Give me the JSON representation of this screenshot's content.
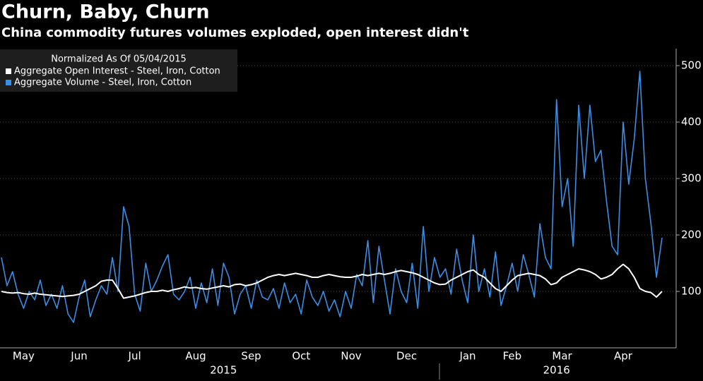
{
  "chart_data": {
    "type": "line",
    "title": "Churn, Baby, Churn",
    "subtitle": "China commodity futures volumes exploded, open interest didn't",
    "legend_title": "Normalized As Of 05/04/2015",
    "legend": "top-left",
    "grid": true,
    "ylim": [
      0,
      530
    ],
    "yticks": [
      100,
      200,
      300,
      400,
      500
    ],
    "categories": [
      null,
      null,
      null,
      null,
      "May",
      null,
      null,
      null,
      null,
      null,
      null,
      null,
      null,
      null,
      "Jun",
      null,
      null,
      null,
      null,
      null,
      null,
      null,
      null,
      null,
      "Jul",
      null,
      null,
      null,
      null,
      null,
      null,
      null,
      null,
      null,
      null,
      "Aug",
      null,
      null,
      null,
      null,
      null,
      null,
      null,
      null,
      null,
      "Sep",
      null,
      null,
      null,
      null,
      null,
      null,
      null,
      null,
      "Oct",
      null,
      null,
      null,
      null,
      null,
      null,
      null,
      null,
      "Nov",
      null,
      null,
      null,
      null,
      null,
      null,
      null,
      null,
      null,
      "Dec",
      null,
      null,
      null,
      null,
      null,
      null,
      null,
      null,
      null,
      null,
      "Jan",
      null,
      null,
      null,
      null,
      null,
      null,
      null,
      "Feb",
      null,
      null,
      null,
      null,
      null,
      null,
      null,
      null,
      "Mar",
      null,
      null,
      null,
      null,
      null,
      null,
      null,
      null,
      null,
      null,
      "Apr",
      null,
      null,
      null,
      null,
      null,
      null,
      null
    ],
    "year_labels": [
      null,
      null,
      null,
      null,
      null,
      null,
      null,
      null,
      null,
      null,
      null,
      null,
      null,
      null,
      null,
      null,
      null,
      null,
      null,
      null,
      null,
      null,
      null,
      null,
      null,
      null,
      null,
      null,
      null,
      null,
      null,
      null,
      null,
      null,
      null,
      null,
      null,
      null,
      null,
      null,
      "2015",
      null,
      null,
      null,
      null,
      null,
      null,
      null,
      null,
      null,
      null,
      null,
      null,
      null,
      null,
      null,
      null,
      null,
      null,
      null,
      null,
      null,
      null,
      null,
      null,
      null,
      null,
      null,
      null,
      null,
      null,
      null,
      null,
      null,
      null,
      null,
      null,
      null,
      null,
      null,
      null,
      null,
      null,
      null,
      null,
      null,
      null,
      null,
      null,
      null,
      null,
      null,
      null,
      null,
      null,
      null,
      null,
      null,
      null,
      null,
      "2016",
      null,
      null,
      null,
      null,
      null,
      null,
      null,
      null,
      null,
      null,
      null,
      null,
      null,
      null,
      null,
      null,
      null,
      null,
      null
    ],
    "series": [
      {
        "name": "Aggregate Open Interest - Steel, Iron, Cotton",
        "color": "#ffffff",
        "values": [
          100,
          98,
          97,
          98,
          96,
          95,
          97,
          95,
          94,
          93,
          92,
          91,
          92,
          93,
          95,
          100,
          105,
          110,
          118,
          120,
          120,
          105,
          88,
          90,
          92,
          95,
          98,
          100,
          100,
          102,
          100,
          103,
          105,
          108,
          106,
          107,
          105,
          104,
          106,
          108,
          110,
          108,
          112,
          113,
          110,
          112,
          115,
          120,
          125,
          128,
          130,
          128,
          130,
          132,
          130,
          128,
          125,
          125,
          128,
          130,
          128,
          126,
          125,
          125,
          127,
          130,
          128,
          130,
          132,
          130,
          132,
          135,
          137,
          135,
          133,
          130,
          125,
          120,
          115,
          112,
          113,
          120,
          125,
          130,
          135,
          138,
          130,
          125,
          115,
          105,
          100,
          110,
          120,
          128,
          130,
          132,
          130,
          128,
          122,
          112,
          115,
          125,
          130,
          135,
          140,
          138,
          135,
          130,
          122,
          125,
          130,
          140,
          148,
          140,
          125,
          105,
          100,
          98,
          90,
          100
        ]
      },
      {
        "name": "Aggregate Volume - Steel, Iron, Cotton",
        "color": "#3a8ee6",
        "values": [
          160,
          110,
          135,
          95,
          70,
          100,
          85,
          120,
          75,
          95,
          70,
          110,
          60,
          45,
          90,
          120,
          55,
          85,
          110,
          95,
          160,
          100,
          250,
          215,
          95,
          65,
          150,
          100,
          120,
          145,
          165,
          95,
          85,
          100,
          125,
          70,
          115,
          80,
          140,
          75,
          150,
          125,
          60,
          95,
          110,
          70,
          120,
          90,
          85,
          105,
          70,
          115,
          80,
          95,
          60,
          120,
          90,
          75,
          100,
          65,
          85,
          55,
          100,
          70,
          130,
          110,
          190,
          80,
          180,
          120,
          60,
          140,
          100,
          80,
          150,
          70,
          215,
          100,
          160,
          125,
          140,
          95,
          175,
          120,
          80,
          200,
          100,
          140,
          90,
          170,
          75,
          110,
          150,
          100,
          165,
          130,
          90,
          220,
          160,
          140,
          440,
          250,
          300,
          180,
          430,
          300,
          430,
          330,
          350,
          260,
          180,
          165,
          400,
          290,
          370,
          490,
          300,
          220,
          125,
          195
        ]
      }
    ]
  }
}
